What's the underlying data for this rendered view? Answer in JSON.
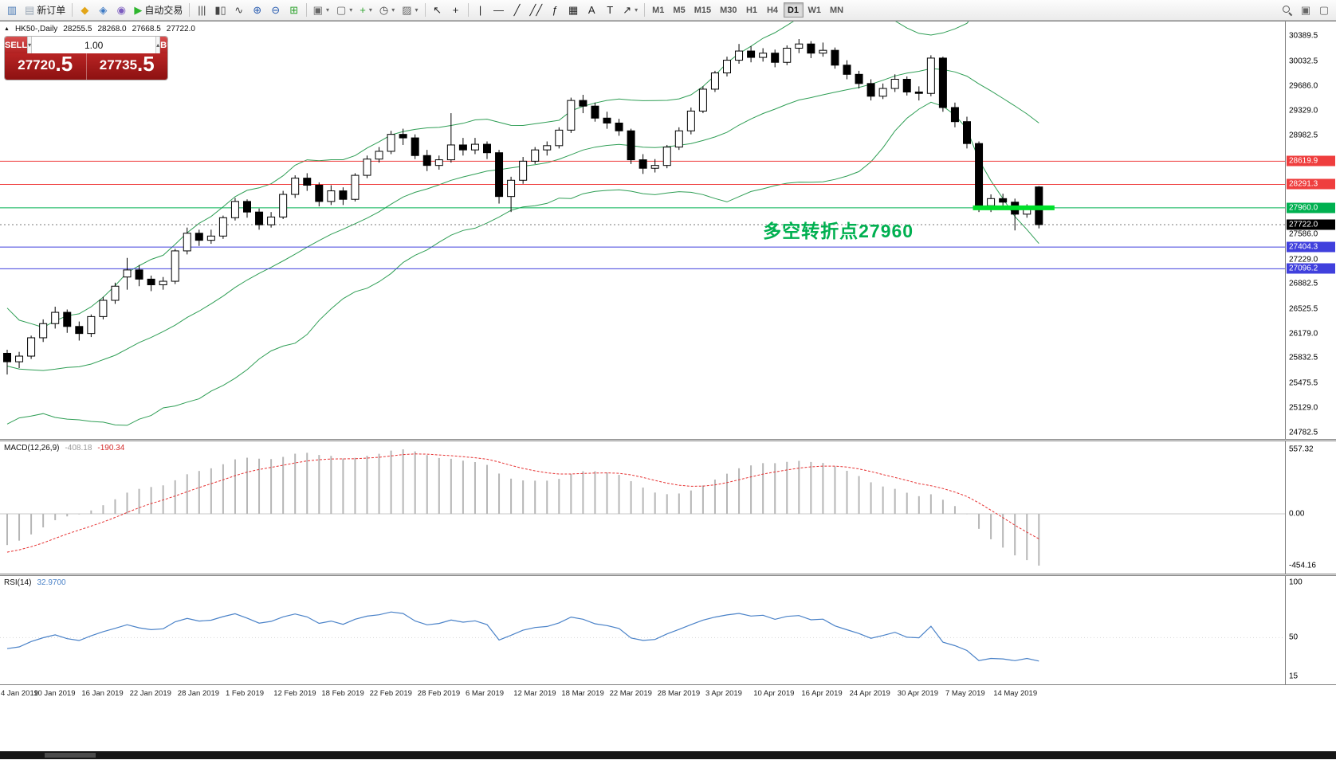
{
  "toolbar": {
    "buttons": [
      {
        "name": "charts-icon",
        "glyph": "▥",
        "color": "#4a7ab5"
      },
      {
        "name": "new-order-button",
        "glyph": "▤",
        "color": "#9aa7b5",
        "label": "新订单"
      },
      {
        "sep": true
      },
      {
        "name": "market-watch-icon",
        "glyph": "◆",
        "color": "#e2a518"
      },
      {
        "name": "data-window-icon",
        "glyph": "◈",
        "color": "#3b78c3"
      },
      {
        "name": "navigator-icon",
        "glyph": "◉",
        "color": "#7c5cbf"
      },
      {
        "name": "autotrading-button",
        "glyph": "▶",
        "color": "#2db52d",
        "label": "自动交易"
      },
      {
        "sep": true
      },
      {
        "name": "bar-chart-icon",
        "glyph": "|||",
        "color": "#444"
      },
      {
        "name": "candlestick-chart-icon",
        "glyph": "▮▯",
        "color": "#444"
      },
      {
        "name": "line-chart-icon",
        "glyph": "∿",
        "color": "#444"
      },
      {
        "name": "zoom-in-icon",
        "glyph": "⊕",
        "color": "#2a5db0"
      },
      {
        "name": "zoom-out-icon",
        "glyph": "⊖",
        "color": "#2a5db0"
      },
      {
        "name": "tile-windows-icon",
        "glyph": "⊞",
        "color": "#2da32d"
      },
      {
        "sep": true
      },
      {
        "name": "new-chart-icon",
        "glyph": "▣",
        "color": "#666",
        "dropdown": true
      },
      {
        "name": "profiles-icon",
        "glyph": "▢",
        "color": "#666",
        "dropdown": true
      },
      {
        "name": "indicators-icon",
        "glyph": "+",
        "color": "#2da32d",
        "dropdown": true
      },
      {
        "name": "periods-icon",
        "glyph": "◷",
        "color": "#444",
        "dropdown": true
      },
      {
        "name": "templates-icon",
        "glyph": "▨",
        "color": "#666",
        "dropdown": true
      },
      {
        "sep": true
      },
      {
        "name": "cursor-icon",
        "glyph": "↖",
        "color": "#222"
      },
      {
        "name": "crosshair-icon",
        "glyph": "+",
        "color": "#222"
      },
      {
        "sep": true
      },
      {
        "name": "vertical-line-icon",
        "glyph": "|",
        "color": "#222"
      },
      {
        "name": "horizontal-line-icon",
        "glyph": "—",
        "color": "#222"
      },
      {
        "name": "trendline-icon",
        "glyph": "╱",
        "color": "#222"
      },
      {
        "name": "channel-icon",
        "glyph": "╱╱",
        "color": "#222"
      },
      {
        "name": "fibonacci-icon",
        "glyph": "ƒ",
        "color": "#222"
      },
      {
        "name": "shapes-icon",
        "glyph": "▦",
        "color": "#222"
      },
      {
        "name": "text-icon",
        "glyph": "A",
        "color": "#222"
      },
      {
        "name": "label-icon",
        "glyph": "T",
        "color": "#222"
      },
      {
        "name": "arrows-icon",
        "glyph": "↗",
        "color": "#222",
        "dropdown": true
      },
      {
        "sep": true
      }
    ],
    "timeframes": [
      "M1",
      "M5",
      "M15",
      "M30",
      "H1",
      "H4",
      "D1",
      "W1",
      "MN"
    ],
    "active_timeframe": "D1",
    "right_icons": [
      {
        "name": "search-icon",
        "css": "mag"
      },
      {
        "name": "chart-shift-icon",
        "glyph": "▣",
        "color": "#666"
      },
      {
        "name": "chart-autoscroll-icon",
        "glyph": "▢",
        "color": "#666"
      }
    ]
  },
  "chart_header": {
    "marker": "▲",
    "symbol": "HK50-,Daily",
    "open": "28255.5",
    "high": "28268.0",
    "low": "27668.5",
    "close": "27722.0"
  },
  "trade_widget": {
    "sell_label": "SELL",
    "buy_label": "BUY",
    "volume": "1.00",
    "sell_price_main": "27720",
    "sell_price_pips": ".5",
    "buy_price_main": "27735",
    "buy_price_pips": ".5",
    "panel_color": "#9d1515"
  },
  "chart_data": {
    "type": "candlestick",
    "symbol": "HK50-",
    "period": "Daily",
    "ylim": [
      24687,
      30598
    ],
    "y_ticks": [
      30389.5,
      30032.5,
      29686.0,
      29329.0,
      28982.5,
      27586.0,
      27229.0,
      26882.5,
      26525.5,
      26179.0,
      25832.5,
      25475.5,
      25129.0,
      24782.5
    ],
    "x_labels": [
      "4 Jan 2019",
      "10 Jan 2019",
      "16 Jan 2019",
      "22 Jan 2019",
      "28 Jan 2019",
      "1 Feb 2019",
      "12 Feb 2019",
      "18 Feb 2019",
      "22 Feb 2019",
      "28 Feb 2019",
      "6 Mar 2019",
      "12 Mar 2019",
      "18 Mar 2019",
      "22 Mar 2019",
      "28 Mar 2019",
      "3 Apr 2019",
      "10 Apr 2019",
      "16 Apr 2019",
      "24 Apr 2019",
      "30 Apr 2019",
      "7 May 2019",
      "14 May 2019"
    ],
    "x_label_step": 4,
    "candle_up_color": "#ffffff",
    "candle_down_color": "#000000",
    "candle_outline_color": "#000000",
    "warmup_closes": [
      26900,
      26700,
      26350,
      26500,
      26100,
      25800,
      26000,
      25650,
      25400,
      25600,
      25300,
      25100,
      25450,
      25250,
      25550,
      25400,
      25700,
      25500,
      25650,
      25600
    ],
    "candles": [
      [
        25900,
        25950,
        25600,
        25780
      ],
      [
        25780,
        25920,
        25690,
        25860
      ],
      [
        25860,
        26150,
        25820,
        26120
      ],
      [
        26120,
        26380,
        26060,
        26320
      ],
      [
        26320,
        26560,
        26250,
        26480
      ],
      [
        26480,
        26520,
        26190,
        26280
      ],
      [
        26280,
        26350,
        26080,
        26180
      ],
      [
        26180,
        26450,
        26130,
        26420
      ],
      [
        26420,
        26700,
        26380,
        26650
      ],
      [
        26650,
        26900,
        26600,
        26850
      ],
      [
        26980,
        27250,
        26800,
        27080
      ],
      [
        27080,
        27150,
        26850,
        26950
      ],
      [
        26950,
        27000,
        26780,
        26870
      ],
      [
        26870,
        26980,
        26800,
        26920
      ],
      [
        26920,
        27380,
        26880,
        27350
      ],
      [
        27350,
        27680,
        27300,
        27600
      ],
      [
        27600,
        27650,
        27420,
        27500
      ],
      [
        27500,
        27650,
        27450,
        27560
      ],
      [
        27560,
        27850,
        27520,
        27820
      ],
      [
        27820,
        28100,
        27780,
        28050
      ],
      [
        28050,
        28080,
        27820,
        27900
      ],
      [
        27900,
        27950,
        27650,
        27720
      ],
      [
        27720,
        27900,
        27680,
        27830
      ],
      [
        27830,
        28200,
        27800,
        28150
      ],
      [
        28150,
        28420,
        28100,
        28380
      ],
      [
        28380,
        28450,
        28200,
        28280
      ],
      [
        28280,
        28320,
        27980,
        28050
      ],
      [
        28050,
        28280,
        28000,
        28200
      ],
      [
        28200,
        28250,
        28000,
        28080
      ],
      [
        28080,
        28450,
        28050,
        28420
      ],
      [
        28420,
        28700,
        28380,
        28650
      ],
      [
        28650,
        28820,
        28600,
        28760
      ],
      [
        28760,
        29050,
        28720,
        29000
      ],
      [
        29000,
        29080,
        28850,
        28950
      ],
      [
        28950,
        29000,
        28650,
        28700
      ],
      [
        28700,
        28780,
        28480,
        28560
      ],
      [
        28560,
        28700,
        28500,
        28640
      ],
      [
        28640,
        29300,
        28600,
        28850
      ],
      [
        28850,
        28950,
        28700,
        28780
      ],
      [
        28780,
        28950,
        28720,
        28860
      ],
      [
        28860,
        28900,
        28650,
        28740
      ],
      [
        28740,
        28780,
        28020,
        28120
      ],
      [
        28120,
        28400,
        27900,
        28350
      ],
      [
        28350,
        28680,
        28300,
        28620
      ],
      [
        28620,
        28820,
        28580,
        28780
      ],
      [
        28780,
        28900,
        28700,
        28840
      ],
      [
        28840,
        29100,
        28800,
        29060
      ],
      [
        29060,
        29520,
        29020,
        29480
      ],
      [
        29480,
        29560,
        29300,
        29400
      ],
      [
        29400,
        29450,
        29180,
        29230
      ],
      [
        29230,
        29320,
        29080,
        29160
      ],
      [
        29160,
        29220,
        28980,
        29050
      ],
      [
        29050,
        29080,
        28580,
        28640
      ],
      [
        28640,
        28720,
        28440,
        28520
      ],
      [
        28520,
        28650,
        28460,
        28560
      ],
      [
        28560,
        28850,
        28520,
        28820
      ],
      [
        28820,
        29100,
        28780,
        29050
      ],
      [
        29050,
        29380,
        29000,
        29330
      ],
      [
        29330,
        29680,
        29300,
        29640
      ],
      [
        29640,
        29900,
        29600,
        29870
      ],
      [
        29870,
        30100,
        29820,
        30050
      ],
      [
        30050,
        30280,
        30000,
        30180
      ],
      [
        30180,
        30250,
        30020,
        30090
      ],
      [
        30090,
        30220,
        30030,
        30150
      ],
      [
        30150,
        30200,
        29950,
        30020
      ],
      [
        30020,
        30260,
        29980,
        30220
      ],
      [
        30220,
        30350,
        30150,
        30280
      ],
      [
        30280,
        30320,
        30080,
        30150
      ],
      [
        30150,
        30300,
        30100,
        30190
      ],
      [
        30190,
        30230,
        29930,
        29980
      ],
      [
        29980,
        30050,
        29780,
        29850
      ],
      [
        29850,
        29900,
        29650,
        29720
      ],
      [
        29720,
        29780,
        29480,
        29540
      ],
      [
        29540,
        29720,
        29500,
        29650
      ],
      [
        29650,
        29850,
        29600,
        29780
      ],
      [
        29780,
        29820,
        29550,
        29600
      ],
      [
        29600,
        29680,
        29480,
        29580
      ],
      [
        29580,
        30120,
        29540,
        30080
      ],
      [
        30080,
        30100,
        29320,
        29380
      ],
      [
        29380,
        29450,
        29100,
        29180
      ],
      [
        29180,
        29250,
        28800,
        28870
      ],
      [
        28870,
        28900,
        27900,
        27990
      ],
      [
        27990,
        28150,
        27900,
        28090
      ],
      [
        28090,
        28160,
        27950,
        28040
      ],
      [
        28040,
        28090,
        27640,
        27870
      ],
      [
        27870,
        28010,
        27820,
        27960
      ],
      [
        28255.5,
        28268.0,
        27668.5,
        27722.0
      ]
    ],
    "bollinger": {
      "period": 20,
      "deviation": 2,
      "color": "#2f9e55"
    },
    "hlines": [
      {
        "price": 28619.9,
        "label": "28619.9",
        "color": "#ef3e3e"
      },
      {
        "price": 28291.3,
        "label": "28291.3",
        "color": "#ef3e3e"
      },
      {
        "price": 27960.0,
        "label": "27960.0",
        "color": "#00b050"
      },
      {
        "price": 27404.3,
        "label": "27404.3",
        "color": "#4040dd"
      },
      {
        "price": 27096.2,
        "label": "27096.2",
        "color": "#4040dd"
      }
    ],
    "current_price": {
      "value": 27722.0,
      "label": "27722.0",
      "badge_color": "#000000"
    },
    "trendline": {
      "price": 27960.0,
      "x_start_index": 80.5,
      "x_end_index": 87.3,
      "color": "#00e02a",
      "width": 6
    },
    "annotation": {
      "text": "多空转折点27960",
      "x_index": 63,
      "price": 27700,
      "color": "#00b050"
    },
    "macd": {
      "title": "MACD(12,26,9)",
      "value_main": "-408.18",
      "value_signal": "-190.34",
      "scale": [
        "557.32",
        "0.00",
        "-454.16"
      ],
      "hist_color": "#b6b6b6",
      "signal_color": "#e63232"
    },
    "rsi": {
      "title": "RSI(14)",
      "value": "32.9700",
      "scale": [
        100,
        50,
        15
      ],
      "color": "#4a82c8"
    }
  }
}
